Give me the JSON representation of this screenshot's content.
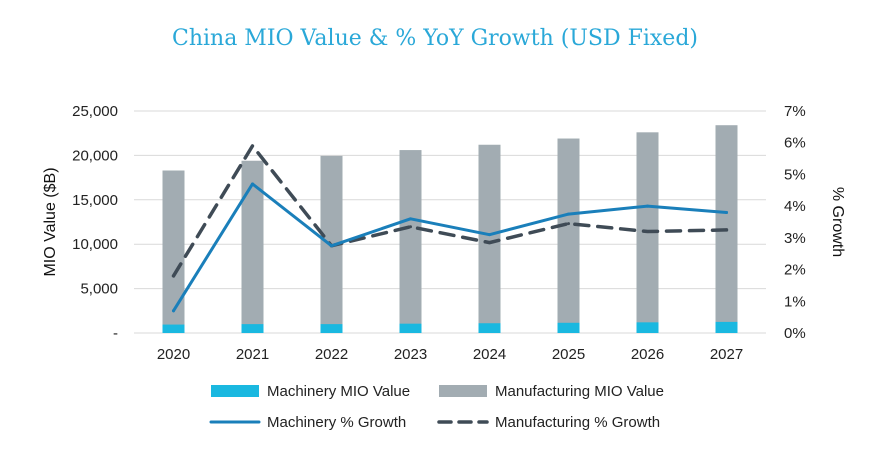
{
  "chart_data": {
    "type": "bar",
    "title": "China MIO Value & % YoY Growth (USD Fixed)",
    "xlabel": "",
    "ylabel": "MIO Value ($B)",
    "y2label": "% Growth",
    "categories": [
      "2020",
      "2021",
      "2022",
      "2023",
      "2024",
      "2025",
      "2026",
      "2027"
    ],
    "ylim": [
      0,
      25000
    ],
    "y2lim": [
      0,
      7
    ],
    "yticks": [
      "-",
      "5,000",
      "10,000",
      "15,000",
      "20,000",
      "25,000"
    ],
    "y2ticks": [
      "0%",
      "1%",
      "2%",
      "3%",
      "4%",
      "5%",
      "6%",
      "7%"
    ],
    "grid": true,
    "legend_position": "bottom",
    "series": [
      {
        "name": "Machinery MIO Value",
        "kind": "bar",
        "axis": "left",
        "color": "#1ab8e0",
        "values": [
          950,
          1000,
          1000,
          1050,
          1100,
          1150,
          1200,
          1250
        ]
      },
      {
        "name": "Manufacturing MIO Value",
        "kind": "bar",
        "axis": "left",
        "color": "#a2acb2",
        "values": [
          18300,
          19400,
          19950,
          20600,
          21200,
          21900,
          22600,
          23400
        ]
      },
      {
        "name": "Machinery % Growth",
        "kind": "line",
        "axis": "right",
        "color": "#1a7fba",
        "dashed": false,
        "values": [
          0.7,
          4.7,
          2.75,
          3.6,
          3.1,
          3.75,
          4.0,
          3.8
        ]
      },
      {
        "name": "Manufacturing % Growth",
        "kind": "line",
        "axis": "right",
        "color": "#3f4b56",
        "dashed": true,
        "values": [
          1.8,
          5.9,
          2.75,
          3.35,
          2.85,
          3.45,
          3.2,
          3.25
        ]
      }
    ]
  }
}
